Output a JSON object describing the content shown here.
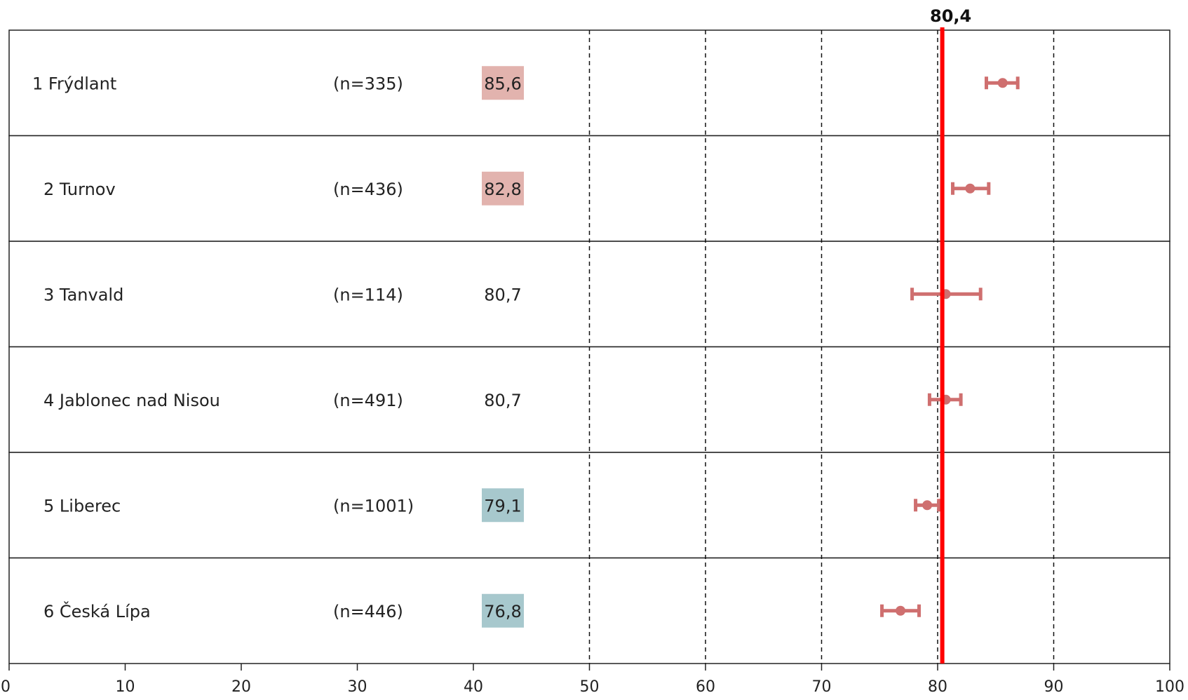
{
  "chart_data": {
    "type": "forest",
    "xlim": [
      0,
      100
    ],
    "x_ticks": [
      "0",
      "10",
      "20",
      "30",
      "40",
      "50",
      "60",
      "70",
      "80",
      "90",
      "100"
    ],
    "gridlines": [
      50,
      60,
      70,
      80,
      90
    ],
    "reference": {
      "value": 80.4,
      "label": "80,4",
      "color": "#ff0000"
    },
    "colors": {
      "above": "#e2b3ae",
      "below": "#a7c8cd",
      "marker": "#cf6f6f"
    },
    "rows": [
      {
        "label": "1 Frýdlant",
        "n": "(n=335)",
        "value_label": "85,6",
        "value": 85.6,
        "low": 84.2,
        "high": 86.9,
        "highlight": "above"
      },
      {
        "label": "2 Turnov",
        "n": "(n=436)",
        "value_label": "82,8",
        "value": 82.8,
        "low": 81.3,
        "high": 84.4,
        "highlight": "above"
      },
      {
        "label": "3 Tanvald",
        "n": "(n=114)",
        "value_label": "80,7",
        "value": 80.7,
        "low": 77.8,
        "high": 83.7,
        "highlight": "none"
      },
      {
        "label": "4 Jablonec nad Nisou",
        "n": "(n=491)",
        "value_label": "80,7",
        "value": 80.7,
        "low": 79.3,
        "high": 82.0,
        "highlight": "none"
      },
      {
        "label": "5 Liberec",
        "n": "(n=1001)",
        "value_label": "79,1",
        "value": 79.1,
        "low": 78.1,
        "high": 80.1,
        "highlight": "below"
      },
      {
        "label": "6 Česká Lípa",
        "n": "(n=446)",
        "value_label": "76,8",
        "value": 76.8,
        "low": 75.2,
        "high": 78.4,
        "highlight": "below"
      }
    ]
  }
}
